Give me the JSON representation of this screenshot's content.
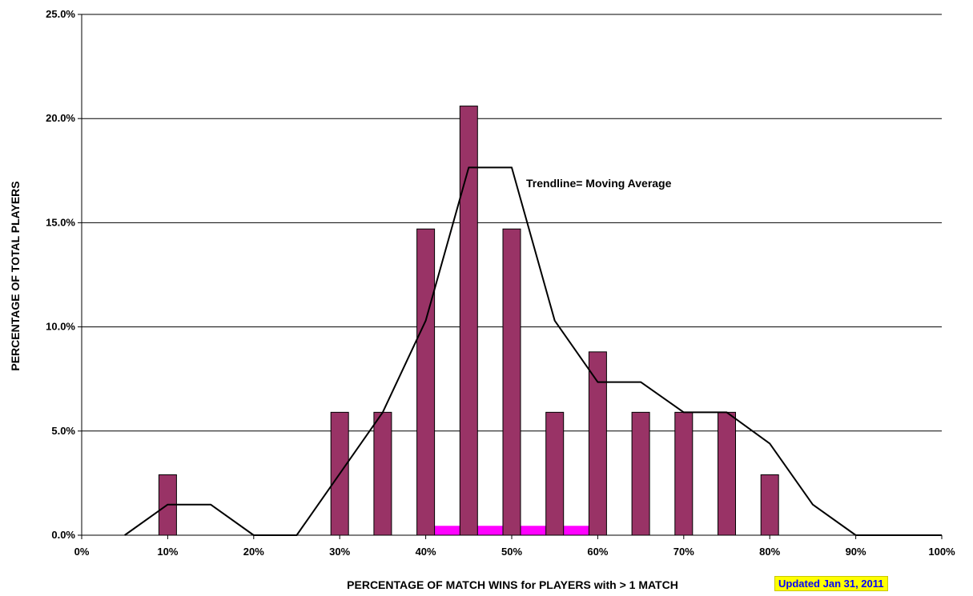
{
  "chart_data": {
    "type": "bar",
    "x_ticks": [
      "0%",
      "10%",
      "20%",
      "30%",
      "40%",
      "50%",
      "60%",
      "70%",
      "80%",
      "90%",
      "100%"
    ],
    "y_ticks": [
      "0.0%",
      "5.0%",
      "10.0%",
      "15.0%",
      "20.0%",
      "25.0%"
    ],
    "xlim": [
      0,
      100
    ],
    "ylim": [
      0,
      25
    ],
    "grid": "horizontal",
    "xlabel": "PERCENTAGE OF MATCH WINS for PLAYERS with > 1 MATCH",
    "ylabel": "PERCENTAGE OF TOTAL PLAYERS",
    "bar_color": "#993366",
    "bars": {
      "x": [
        10,
        30,
        35,
        40,
        45,
        50,
        55,
        60,
        65,
        70,
        75,
        80
      ],
      "values": [
        2.9,
        5.9,
        5.9,
        14.7,
        20.6,
        14.7,
        5.9,
        8.8,
        5.9,
        5.9,
        5.9,
        2.9
      ]
    },
    "trendline": {
      "label": "Trendline= Moving Average",
      "color": "#000000",
      "x": [
        5,
        10,
        15,
        20,
        25,
        30,
        35,
        40,
        45,
        50,
        55,
        60,
        65,
        70,
        75,
        80,
        85,
        90,
        95,
        100
      ],
      "values": [
        0,
        1.47,
        1.47,
        0,
        0,
        2.95,
        5.9,
        10.3,
        17.65,
        17.65,
        10.3,
        7.35,
        7.35,
        5.9,
        5.9,
        4.4,
        1.47,
        0,
        0,
        0
      ]
    },
    "highlight_band": {
      "color": "#ff00ff",
      "x_range": [
        39,
        61
      ],
      "y_range": [
        0,
        0.45
      ]
    }
  },
  "footer": {
    "updated_text": "Updated Jan 31, 2011"
  }
}
